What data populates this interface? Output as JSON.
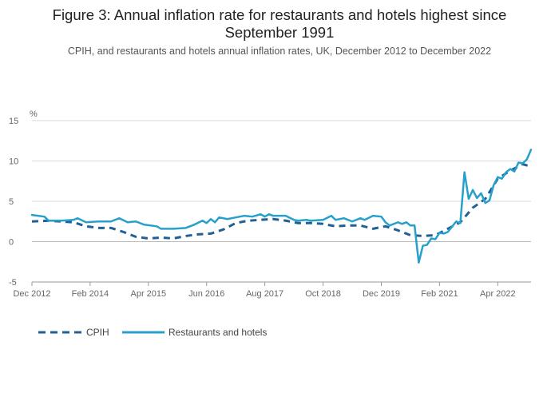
{
  "title": "Figure 3: Annual inflation rate for restaurants and hotels highest since September 1991",
  "subtitle": "CPIH, and restaurants and hotels annual inflation rates, UK, December 2012 to December 2022",
  "colors": {
    "cpih": "#206095",
    "restaurants": "#27a0cc",
    "grid": "#d9d9d9",
    "zero": "#bbbbbb"
  },
  "chart_data": {
    "type": "line",
    "ylabel": "%",
    "ylim": [
      -5,
      15
    ],
    "yticks": [
      15,
      10,
      5,
      0,
      -5
    ],
    "xlim": [
      2012.917,
      2022.917
    ],
    "xticks": [
      {
        "label": "Dec 2012",
        "x": 2012.917
      },
      {
        "label": "Feb 2014",
        "x": 2014.083
      },
      {
        "label": "Apr 2015",
        "x": 2015.25
      },
      {
        "label": "Jun 2016",
        "x": 2016.417
      },
      {
        "label": "Aug 2017",
        "x": 2017.583
      },
      {
        "label": "Oct 2018",
        "x": 2018.75
      },
      {
        "label": "Dec 2019",
        "x": 2019.917
      },
      {
        "label": "Feb 2021",
        "x": 2021.083
      },
      {
        "label": "Apr 2022",
        "x": 2022.25
      }
    ],
    "grid": true,
    "legend": "bottom-left",
    "series": [
      {
        "name": "CPIH",
        "style": "dashed",
        "points": [
          [
            2012.917,
            2.5
          ],
          [
            2013.25,
            2.6
          ],
          [
            2013.5,
            2.5
          ],
          [
            2013.75,
            2.4
          ],
          [
            2014.0,
            1.9
          ],
          [
            2014.25,
            1.7
          ],
          [
            2014.5,
            1.7
          ],
          [
            2014.75,
            1.2
          ],
          [
            2015.0,
            0.6
          ],
          [
            2015.25,
            0.4
          ],
          [
            2015.5,
            0.5
          ],
          [
            2015.75,
            0.4
          ],
          [
            2016.0,
            0.7
          ],
          [
            2016.25,
            0.9
          ],
          [
            2016.5,
            1.0
          ],
          [
            2016.75,
            1.5
          ],
          [
            2017.0,
            2.3
          ],
          [
            2017.25,
            2.6
          ],
          [
            2017.5,
            2.7
          ],
          [
            2017.75,
            2.8
          ],
          [
            2018.0,
            2.6
          ],
          [
            2018.25,
            2.3
          ],
          [
            2018.5,
            2.3
          ],
          [
            2018.75,
            2.2
          ],
          [
            2019.0,
            1.9
          ],
          [
            2019.25,
            2.0
          ],
          [
            2019.5,
            2.0
          ],
          [
            2019.75,
            1.6
          ],
          [
            2020.0,
            1.9
          ],
          [
            2020.25,
            1.4
          ],
          [
            2020.5,
            0.8
          ],
          [
            2020.75,
            0.7
          ],
          [
            2021.0,
            0.8
          ],
          [
            2021.25,
            1.6
          ],
          [
            2021.5,
            2.4
          ],
          [
            2021.75,
            4.2
          ],
          [
            2022.0,
            5.3
          ],
          [
            2022.25,
            7.8
          ],
          [
            2022.5,
            8.8
          ],
          [
            2022.75,
            9.6
          ],
          [
            2022.917,
            9.3
          ]
        ]
      },
      {
        "name": "Restaurants and hotels",
        "style": "solid",
        "points": [
          [
            2012.917,
            3.3
          ],
          [
            2013.167,
            3.1
          ],
          [
            2013.25,
            2.6
          ],
          [
            2013.5,
            2.6
          ],
          [
            2013.75,
            2.7
          ],
          [
            2013.833,
            2.9
          ],
          [
            2014.0,
            2.4
          ],
          [
            2014.25,
            2.5
          ],
          [
            2014.5,
            2.5
          ],
          [
            2014.667,
            2.9
          ],
          [
            2014.833,
            2.4
          ],
          [
            2015.0,
            2.5
          ],
          [
            2015.167,
            2.1
          ],
          [
            2015.417,
            1.9
          ],
          [
            2015.5,
            1.6
          ],
          [
            2015.75,
            1.6
          ],
          [
            2016.0,
            1.7
          ],
          [
            2016.167,
            2.1
          ],
          [
            2016.333,
            2.6
          ],
          [
            2016.417,
            2.3
          ],
          [
            2016.5,
            2.8
          ],
          [
            2016.583,
            2.4
          ],
          [
            2016.667,
            3.0
          ],
          [
            2016.833,
            2.8
          ],
          [
            2017.0,
            3.0
          ],
          [
            2017.167,
            3.2
          ],
          [
            2017.333,
            3.1
          ],
          [
            2017.5,
            3.4
          ],
          [
            2017.583,
            3.1
          ],
          [
            2017.667,
            3.4
          ],
          [
            2017.75,
            3.2
          ],
          [
            2018.0,
            3.2
          ],
          [
            2018.167,
            2.7
          ],
          [
            2018.25,
            2.6
          ],
          [
            2018.417,
            2.7
          ],
          [
            2018.5,
            2.6
          ],
          [
            2018.75,
            2.7
          ],
          [
            2018.917,
            3.2
          ],
          [
            2019.0,
            2.7
          ],
          [
            2019.167,
            2.9
          ],
          [
            2019.333,
            2.5
          ],
          [
            2019.5,
            2.9
          ],
          [
            2019.583,
            2.7
          ],
          [
            2019.75,
            3.2
          ],
          [
            2019.917,
            3.1
          ],
          [
            2020.0,
            2.4
          ],
          [
            2020.083,
            2.0
          ],
          [
            2020.25,
            2.4
          ],
          [
            2020.333,
            2.2
          ],
          [
            2020.417,
            2.4
          ],
          [
            2020.5,
            2.0
          ],
          [
            2020.583,
            2.0
          ],
          [
            2020.667,
            -2.6
          ],
          [
            2020.75,
            -0.5
          ],
          [
            2020.833,
            -0.4
          ],
          [
            2020.917,
            0.4
          ],
          [
            2021.0,
            0.3
          ],
          [
            2021.083,
            1.1
          ],
          [
            2021.167,
            1.0
          ],
          [
            2021.25,
            1.2
          ],
          [
            2021.417,
            2.5
          ],
          [
            2021.5,
            2.3
          ],
          [
            2021.583,
            8.6
          ],
          [
            2021.667,
            5.3
          ],
          [
            2021.75,
            6.4
          ],
          [
            2021.833,
            5.4
          ],
          [
            2021.917,
            6.0
          ],
          [
            2022.0,
            4.8
          ],
          [
            2022.083,
            5.1
          ],
          [
            2022.167,
            7.0
          ],
          [
            2022.25,
            8.0
          ],
          [
            2022.333,
            7.8
          ],
          [
            2022.417,
            8.6
          ],
          [
            2022.5,
            9.0
          ],
          [
            2022.583,
            8.7
          ],
          [
            2022.667,
            9.8
          ],
          [
            2022.75,
            9.7
          ],
          [
            2022.833,
            10.2
          ],
          [
            2022.917,
            11.4
          ]
        ]
      }
    ]
  }
}
